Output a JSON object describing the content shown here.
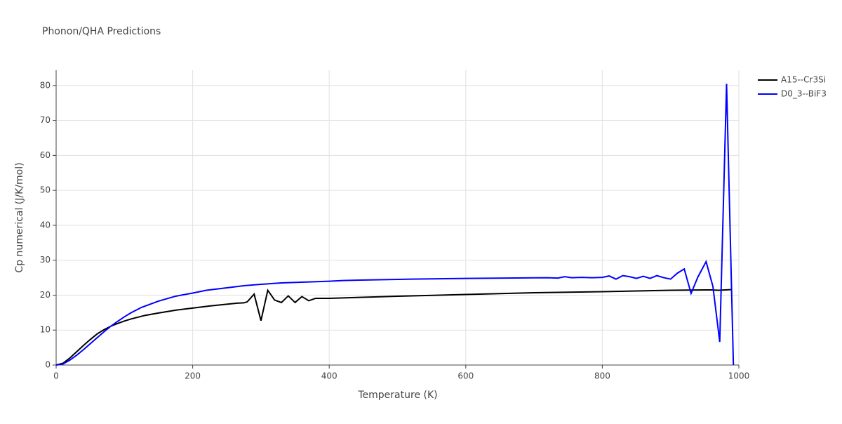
{
  "chart_data": {
    "type": "line",
    "title": "Phonon/QHA Predictions",
    "x_label": "Temperature (K)",
    "y_label": "Cp numerical (J/K/mol)",
    "xlim": [
      0,
      1000
    ],
    "ylim": [
      0,
      84.4
    ],
    "xticks": [
      0,
      200,
      400,
      600,
      800,
      1000
    ],
    "yticks": [
      0,
      10,
      20,
      30,
      40,
      50,
      60,
      70,
      80
    ],
    "grid": true,
    "legend": "outside-top-right",
    "series": [
      {
        "name": "A15--Cr3Si",
        "color": "#000000",
        "x": [
          0,
          10,
          20,
          30,
          40,
          50,
          60,
          70,
          80,
          90,
          100,
          110,
          120,
          130,
          150,
          175,
          200,
          225,
          250,
          265,
          275,
          280,
          290,
          300,
          310,
          320,
          330,
          340,
          350,
          360,
          370,
          380,
          400,
          500,
          600,
          700,
          800,
          900,
          950,
          960,
          970,
          980,
          990
        ],
        "values": [
          0,
          0.5,
          2,
          3.8,
          5.6,
          7.3,
          8.9,
          10.1,
          11.1,
          11.9,
          12.6,
          13.2,
          13.7,
          14.2,
          14.9,
          15.7,
          16.3,
          16.9,
          17.4,
          17.7,
          17.8,
          18.1,
          20.3,
          12.7,
          21.4,
          18.6,
          17.9,
          19.8,
          17.9,
          19.6,
          18.4,
          19.1,
          19.1,
          19.7,
          20.2,
          20.7,
          21.0,
          21.4,
          21.5,
          21.5,
          21.4,
          21.5,
          21.6
        ]
      },
      {
        "name": "D0_3--BiF3",
        "color": "#0000ff",
        "x": [
          0,
          10,
          20,
          30,
          40,
          50,
          60,
          70,
          80,
          90,
          100,
          110,
          125,
          150,
          175,
          200,
          220,
          250,
          275,
          300,
          330,
          400,
          420,
          520,
          600,
          720,
          735,
          745,
          755,
          770,
          785,
          800,
          810,
          820,
          830,
          840,
          850,
          860,
          870,
          880,
          890,
          900,
          910,
          920,
          930,
          940,
          952,
          962,
          972,
          982,
          992
        ],
        "values": [
          0,
          0.3,
          1.4,
          2.8,
          4.4,
          6.1,
          7.8,
          9.5,
          11.1,
          12.5,
          13.8,
          15,
          16.5,
          18.3,
          19.7,
          20.6,
          21.4,
          22.1,
          22.7,
          23.1,
          23.5,
          24.0,
          24.2,
          24.6,
          24.8,
          25.0,
          24.9,
          25.3,
          25.0,
          25.1,
          25.0,
          25.1,
          25.5,
          24.6,
          25.6,
          25.3,
          24.8,
          25.4,
          24.8,
          25.6,
          25.0,
          24.6,
          26.3,
          27.5,
          20.5,
          25.2,
          29.6,
          22.5,
          6.6,
          80.5,
          0
        ]
      }
    ]
  }
}
